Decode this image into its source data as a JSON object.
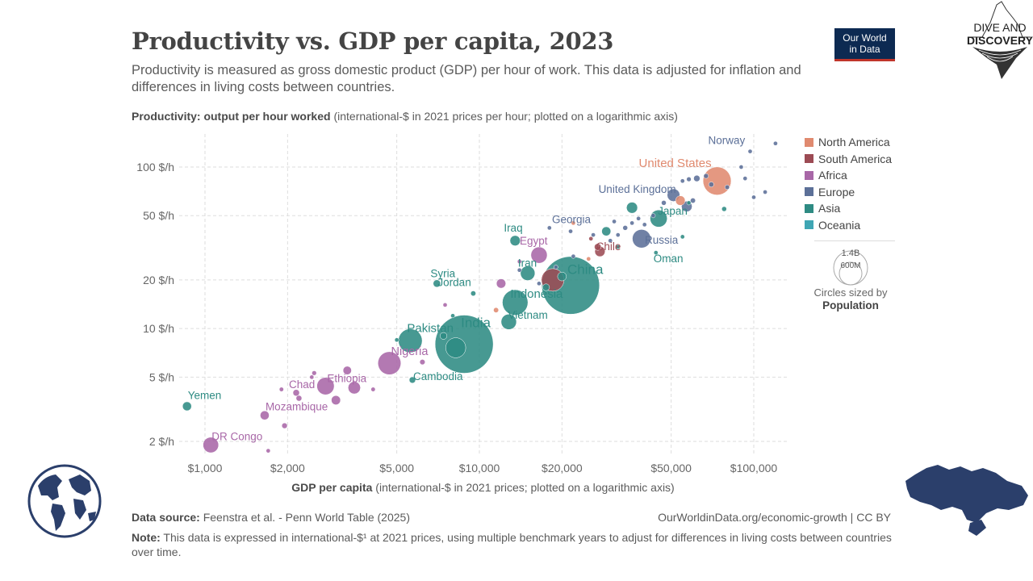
{
  "header": {
    "title": "Productivity vs. GDP per capita, 2023",
    "subtitle": "Productivity is measured as gross domestic product (GDP) per hour of work. This data is adjusted for inflation and differences in living costs between countries.",
    "y_label_bold": "Productivity: output per hour worked",
    "y_label_rest": "(international-$ in 2021 prices per hour; plotted on a logarithmic axis)",
    "x_label_bold": "GDP per capita",
    "x_label_rest": "(international-$ in 2021 prices; plotted on a logarithmic axis)"
  },
  "logos": {
    "owid_line1": "Our World",
    "owid_line2": "in Data",
    "dd_line1": "DIVE AND",
    "dd_line2": "DISCOVERY"
  },
  "legend": {
    "items": [
      {
        "name": "North America",
        "color": "#e08a6f"
      },
      {
        "name": "South America",
        "color": "#9c4b54"
      },
      {
        "name": "Africa",
        "color": "#a867a7"
      },
      {
        "name": "Europe",
        "color": "#5c7098"
      },
      {
        "name": "Asia",
        "color": "#2e8b83"
      },
      {
        "name": "Oceania",
        "color": "#3fa6b4"
      }
    ],
    "size_big": "1.4B",
    "size_small": "600M",
    "size_caption_1": "Circles sized by",
    "size_caption_2": "Population"
  },
  "footer": {
    "source_bold": "Data source:",
    "source_rest": "Feenstra et al. - Penn World Table (2025)",
    "license": "OurWorldinData.org/economic-growth | CC BY",
    "note_bold": "Note:",
    "note_rest": "This data is expressed in international-$¹ at 2021 prices, using multiple benchmark years to adjust for differences in living costs between countries over time."
  },
  "chart_data": {
    "type": "scatter",
    "title": "Productivity vs. GDP per capita, 2023",
    "xlabel": "GDP per capita",
    "ylabel": "Productivity: output per hour worked",
    "x_scale": "log",
    "y_scale": "log",
    "xlim": [
      850,
      130000
    ],
    "ylim": [
      1.65,
      150
    ],
    "x_ticks": [
      1000,
      2000,
      5000,
      10000,
      20000,
      50000,
      100000
    ],
    "x_tick_labels": [
      "$1,000",
      "$2,000",
      "$5,000",
      "$10,000",
      "$20,000",
      "$50,000",
      "$100,000"
    ],
    "y_ticks": [
      2,
      5,
      10,
      20,
      50,
      100
    ],
    "y_tick_labels": [
      "2 $/h",
      "5 $/h",
      "10 $/h",
      "20 $/h",
      "50 $/h",
      "100 $/h"
    ],
    "labeled_points": [
      {
        "name": "Norway",
        "region": "Europe",
        "gdp": 97000,
        "prod": 125,
        "pop_m": 5.5
      },
      {
        "name": "United States",
        "region": "North America",
        "gdp": 73500,
        "prod": 82,
        "pop_m": 335
      },
      {
        "name": "United Kingdom",
        "region": "Europe",
        "gdp": 51000,
        "prod": 67,
        "pop_m": 68
      },
      {
        "name": "Japan",
        "region": "Asia",
        "gdp": 45000,
        "prod": 48,
        "pop_m": 124
      },
      {
        "name": "Georgia",
        "region": "Europe",
        "gdp": 21500,
        "prod": 40,
        "pop_m": 3.7
      },
      {
        "name": "Russia",
        "region": "Europe",
        "gdp": 39000,
        "prod": 36,
        "pop_m": 144
      },
      {
        "name": "Chile",
        "region": "South America",
        "gdp": 27000,
        "prod": 32,
        "pop_m": 19.6
      },
      {
        "name": "Oman",
        "region": "Asia",
        "gdp": 44000,
        "prod": 29.5,
        "pop_m": 4.6
      },
      {
        "name": "Iraq",
        "region": "Asia",
        "gdp": 13500,
        "prod": 35,
        "pop_m": 45
      },
      {
        "name": "Egypt",
        "region": "Africa",
        "gdp": 16500,
        "prod": 28.5,
        "pop_m": 112
      },
      {
        "name": "Iran",
        "region": "Asia",
        "gdp": 15000,
        "prod": 22,
        "pop_m": 89
      },
      {
        "name": "China",
        "region": "Asia",
        "gdp": 21500,
        "prod": 18.5,
        "pop_m": 1410
      },
      {
        "name": "Syria",
        "region": "Asia",
        "gdp": 7000,
        "prod": 19,
        "pop_m": 23
      },
      {
        "name": "Jordan",
        "region": "Asia",
        "gdp": 9500,
        "prod": 16.5,
        "pop_m": 11
      },
      {
        "name": "Indonesia",
        "region": "Asia",
        "gdp": 13500,
        "prod": 14.5,
        "pop_m": 277
      },
      {
        "name": "Vietnam",
        "region": "Asia",
        "gdp": 12800,
        "prod": 11,
        "pop_m": 100
      },
      {
        "name": "India",
        "region": "Asia",
        "gdp": 8800,
        "prod": 8,
        "pop_m": 1430
      },
      {
        "name": "Pakistan",
        "region": "Asia",
        "gdp": 5600,
        "prod": 8.4,
        "pop_m": 240
      },
      {
        "name": "Nigeria",
        "region": "Africa",
        "gdp": 4700,
        "prod": 6.1,
        "pop_m": 224
      },
      {
        "name": "Cambodia",
        "region": "Asia",
        "gdp": 5700,
        "prod": 4.8,
        "pop_m": 17
      },
      {
        "name": "Ethiopia",
        "region": "Africa",
        "gdp": 2750,
        "prod": 4.4,
        "pop_m": 127
      },
      {
        "name": "Chad",
        "region": "Africa",
        "gdp": 2150,
        "prod": 4.0,
        "pop_m": 18
      },
      {
        "name": "Yemen",
        "region": "Asia",
        "gdp": 860,
        "prod": 3.3,
        "pop_m": 34
      },
      {
        "name": "Mozambique",
        "region": "Africa",
        "gdp": 1650,
        "prod": 2.9,
        "pop_m": 34
      },
      {
        "name": "DR Congo",
        "region": "Africa",
        "gdp": 1050,
        "prod": 1.9,
        "pop_m": 102
      }
    ],
    "unlabeled_points": [
      {
        "region": "Europe",
        "gdp": 120000,
        "prod": 140,
        "pop_m": 0.7
      },
      {
        "region": "Europe",
        "gdp": 90000,
        "prod": 100,
        "pop_m": 5
      },
      {
        "region": "Europe",
        "gdp": 110000,
        "prod": 70,
        "pop_m": 5
      },
      {
        "region": "Europe",
        "gdp": 100000,
        "prod": 65,
        "pop_m": 5
      },
      {
        "region": "Europe",
        "gdp": 93000,
        "prod": 85,
        "pop_m": 2
      },
      {
        "region": "Europe",
        "gdp": 67000,
        "prod": 88,
        "pop_m": 10
      },
      {
        "region": "Europe",
        "gdp": 62000,
        "prod": 85,
        "pop_m": 17
      },
      {
        "region": "Europe",
        "gdp": 58000,
        "prod": 84,
        "pop_m": 9
      },
      {
        "region": "Europe",
        "gdp": 55000,
        "prod": 82,
        "pop_m": 6
      },
      {
        "region": "Europe",
        "gdp": 80000,
        "prod": 75,
        "pop_m": 9
      },
      {
        "region": "Europe",
        "gdp": 70000,
        "prod": 78,
        "pop_m": 11
      },
      {
        "region": "Europe",
        "gdp": 47000,
        "prod": 60,
        "pop_m": 10
      },
      {
        "region": "Europe",
        "gdp": 57000,
        "prod": 57,
        "pop_m": 48
      },
      {
        "region": "Europe",
        "gdp": 60000,
        "prod": 62,
        "pop_m": 11
      },
      {
        "region": "Europe",
        "gdp": 43000,
        "prod": 50,
        "pop_m": 8
      },
      {
        "region": "Europe",
        "gdp": 36000,
        "prod": 45,
        "pop_m": 5
      },
      {
        "region": "Europe",
        "gdp": 40000,
        "prod": 44,
        "pop_m": 4
      },
      {
        "region": "Europe",
        "gdp": 34000,
        "prod": 42,
        "pop_m": 10
      },
      {
        "region": "Europe",
        "gdp": 38000,
        "prod": 48,
        "pop_m": 2
      },
      {
        "region": "Europe",
        "gdp": 32000,
        "prod": 38,
        "pop_m": 6
      },
      {
        "region": "Europe",
        "gdp": 31000,
        "prod": 46,
        "pop_m": 1.3
      },
      {
        "region": "Europe",
        "gdp": 26000,
        "prod": 38,
        "pop_m": 2
      },
      {
        "region": "Europe",
        "gdp": 30000,
        "prod": 35,
        "pop_m": 3
      },
      {
        "region": "Europe",
        "gdp": 18000,
        "prod": 42,
        "pop_m": 2
      },
      {
        "region": "Europe",
        "gdp": 22000,
        "prod": 28,
        "pop_m": 7
      },
      {
        "region": "Europe",
        "gdp": 19000,
        "prod": 24,
        "pop_m": 1.8
      },
      {
        "region": "Europe",
        "gdp": 16500,
        "prod": 19,
        "pop_m": 2.8
      },
      {
        "region": "Europe",
        "gdp": 14000,
        "prod": 23,
        "pop_m": 3
      },
      {
        "region": "Asia",
        "gdp": 78000,
        "prod": 55,
        "pop_m": 10
      },
      {
        "region": "Asia",
        "gdp": 58000,
        "prod": 60,
        "pop_m": 5
      },
      {
        "region": "Asia",
        "gdp": 55000,
        "prod": 37,
        "pop_m": 3
      },
      {
        "region": "Asia",
        "gdp": 36000,
        "prod": 56,
        "pop_m": 52
      },
      {
        "region": "Asia",
        "gdp": 32000,
        "prod": 32,
        "pop_m": 4
      },
      {
        "region": "Asia",
        "gdp": 29000,
        "prod": 40,
        "pop_m": 35
      },
      {
        "region": "Asia",
        "gdp": 20000,
        "prod": 21,
        "pop_m": 33
      },
      {
        "region": "Asia",
        "gdp": 17500,
        "prod": 18,
        "pop_m": 20
      },
      {
        "region": "Asia",
        "gdp": 8000,
        "prod": 12,
        "pop_m": 6
      },
      {
        "region": "Asia",
        "gdp": 7400,
        "prod": 9,
        "pop_m": 20
      },
      {
        "region": "Asia",
        "gdp": 8200,
        "prod": 7.6,
        "pop_m": 170
      },
      {
        "region": "Asia",
        "gdp": 5000,
        "prod": 8.5,
        "pop_m": 5
      },
      {
        "region": "North America",
        "gdp": 54000,
        "prod": 62,
        "pop_m": 39
      },
      {
        "region": "North America",
        "gdp": 25000,
        "prod": 27,
        "pop_m": 5
      },
      {
        "region": "North America",
        "gdp": 22000,
        "prod": 45,
        "pop_m": 3
      },
      {
        "region": "North America",
        "gdp": 11500,
        "prod": 13,
        "pop_m": 11
      },
      {
        "region": "South America",
        "gdp": 18500,
        "prod": 20,
        "pop_m": 216
      },
      {
        "region": "South America",
        "gdp": 25500,
        "prod": 36,
        "pop_m": 3
      },
      {
        "region": "South America",
        "gdp": 27500,
        "prod": 30,
        "pop_m": 45
      },
      {
        "region": "Africa",
        "gdp": 14000,
        "prod": 26,
        "pop_m": 5
      },
      {
        "region": "Africa",
        "gdp": 12000,
        "prod": 19,
        "pop_m": 37
      },
      {
        "region": "Africa",
        "gdp": 7500,
        "prod": 14,
        "pop_m": 3
      },
      {
        "region": "Africa",
        "gdp": 6200,
        "prod": 6.2,
        "pop_m": 12
      },
      {
        "region": "Africa",
        "gdp": 3500,
        "prod": 4.3,
        "pop_m": 65
      },
      {
        "region": "Africa",
        "gdp": 4100,
        "prod": 4.2,
        "pop_m": 8
      },
      {
        "region": "Africa",
        "gdp": 3300,
        "prod": 5.5,
        "pop_m": 30
      },
      {
        "region": "Africa",
        "gdp": 3000,
        "prod": 3.6,
        "pop_m": 36
      },
      {
        "region": "Africa",
        "gdp": 2200,
        "prod": 3.7,
        "pop_m": 14
      },
      {
        "region": "Africa",
        "gdp": 2500,
        "prod": 5.3,
        "pop_m": 9
      },
      {
        "region": "Africa",
        "gdp": 1900,
        "prod": 4.2,
        "pop_m": 8
      },
      {
        "region": "Africa",
        "gdp": 1950,
        "prod": 2.5,
        "pop_m": 13
      },
      {
        "region": "Africa",
        "gdp": 1700,
        "prod": 1.75,
        "pop_m": 6
      },
      {
        "region": "Africa",
        "gdp": 2450,
        "prod": 5.0,
        "pop_m": 5
      }
    ]
  }
}
